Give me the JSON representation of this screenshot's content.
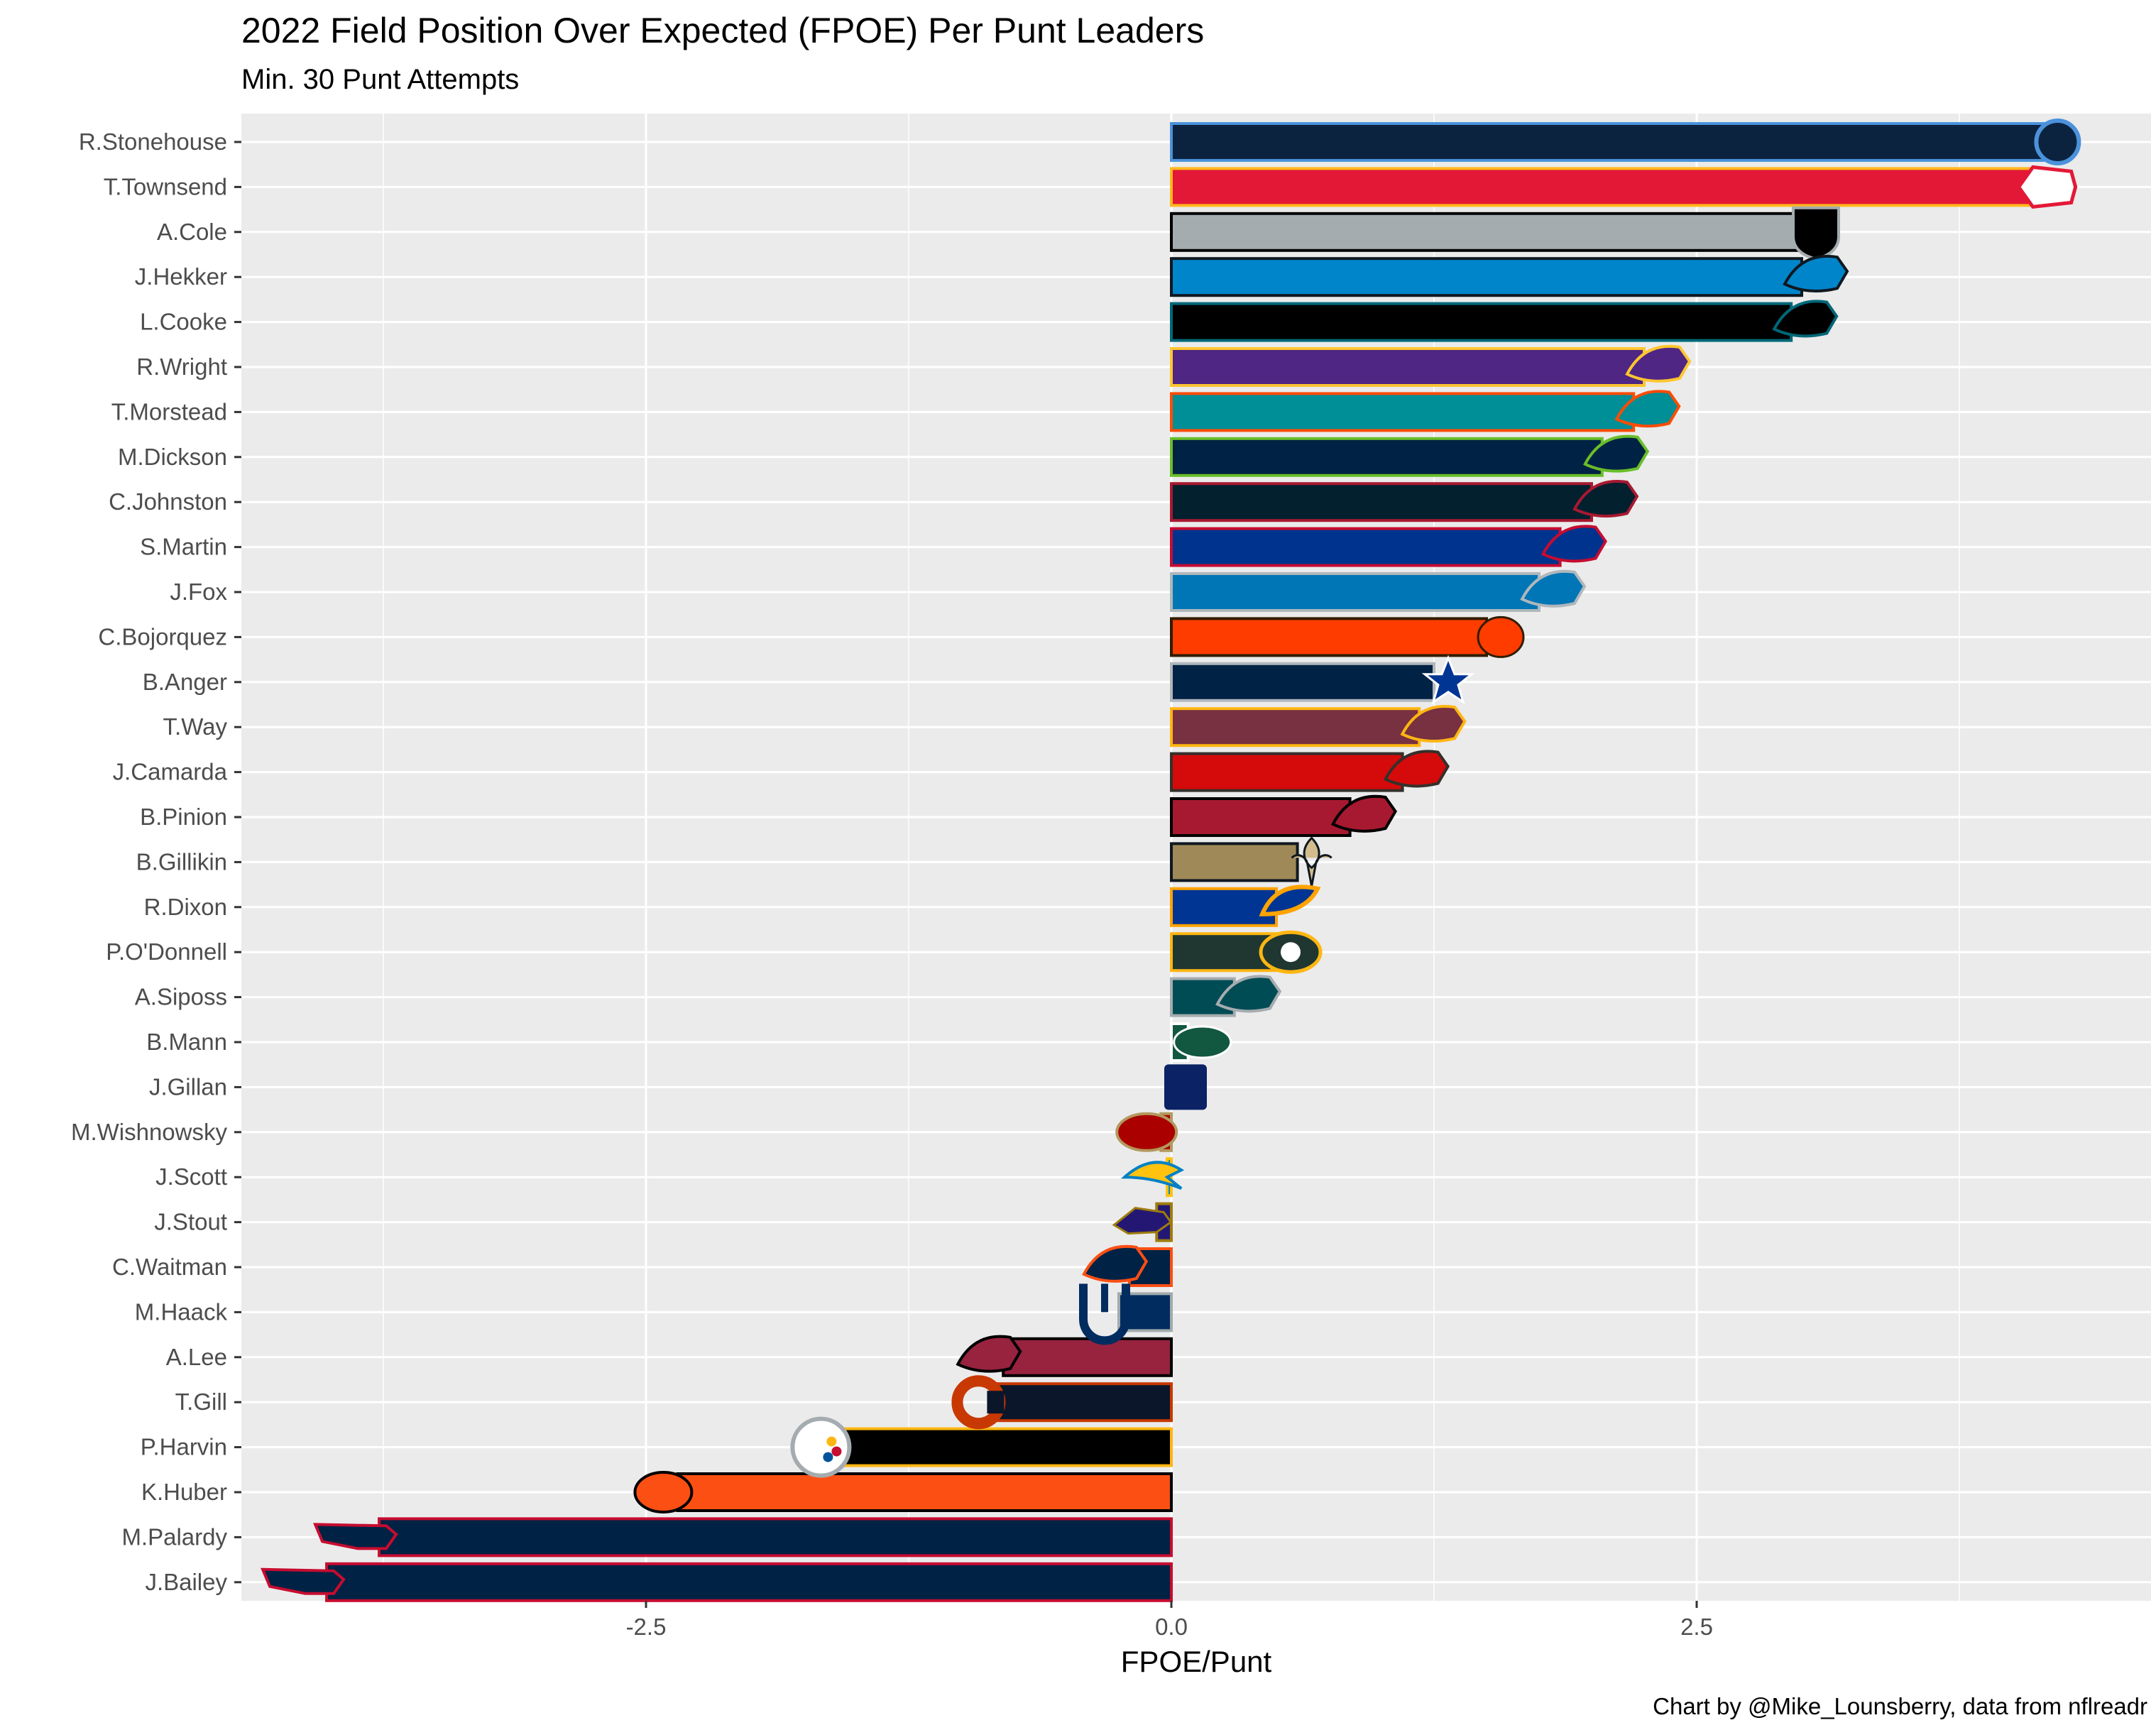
{
  "chart_data": {
    "type": "bar",
    "orientation": "horizontal",
    "title": "2022 Field Position Over Expected (FPOE) Per Punt Leaders",
    "subtitle": "Min. 30 Punt Attempts",
    "xlabel": "FPOE/Punt",
    "ylabel": "",
    "caption": "Chart by @Mike_Lounsberry, data from nflreadr",
    "xlim": [
      -4.4,
      4.65
    ],
    "x_ticks": [
      -2.5,
      0.0,
      2.5
    ],
    "x_tick_labels": [
      "-2.5",
      "0.0",
      "2.5"
    ],
    "grid": true,
    "categories": [
      "R.Stonehouse",
      "T.Townsend",
      "A.Cole",
      "J.Hekker",
      "L.Cooke",
      "R.Wright",
      "T.Morstead",
      "M.Dickson",
      "C.Johnston",
      "S.Martin",
      "J.Fox",
      "C.Bojorquez",
      "B.Anger",
      "T.Way",
      "J.Camarda",
      "B.Pinion",
      "B.Gillikin",
      "R.Dixon",
      "P.O'Donnell",
      "A.Siposs",
      "B.Mann",
      "J.Gillan",
      "M.Wishnowsky",
      "J.Scott",
      "J.Stout",
      "C.Waitman",
      "M.Haack",
      "A.Lee",
      "T.Gill",
      "P.Harvin",
      "K.Huber",
      "M.Palardy",
      "J.Bailey"
    ],
    "values": [
      4.15,
      4.1,
      3.0,
      3.0,
      2.95,
      2.25,
      2.2,
      2.05,
      2.0,
      1.85,
      1.75,
      1.5,
      1.25,
      1.18,
      1.1,
      0.85,
      0.6,
      0.5,
      0.5,
      0.3,
      0.08,
      0.0,
      -0.05,
      -0.02,
      -0.07,
      -0.2,
      -0.25,
      -0.8,
      -0.85,
      -1.6,
      -2.35,
      -3.77,
      -4.02
    ],
    "teams": [
      "TEN",
      "KC",
      "LV",
      "CAR",
      "JAX",
      "MIN",
      "MIA",
      "SEA",
      "HOU",
      "BUF",
      "DET",
      "CLE",
      "DAL",
      "WAS",
      "TB",
      "ATL",
      "NO",
      "LA",
      "GB",
      "PHI",
      "NYJ",
      "NYG",
      "SF",
      "LAC",
      "BAL",
      "DEN",
      "IND",
      "ARI",
      "CHI",
      "PIT",
      "CIN",
      "NE",
      "NE"
    ],
    "fill_colors": [
      "#0C2340",
      "#E31837",
      "#A5ACAF",
      "#0085CA",
      "#000000",
      "#4F2683",
      "#008E97",
      "#002244",
      "#03202F",
      "#00338D",
      "#0076B6",
      "#FF3C00",
      "#002244",
      "#773141",
      "#D50A0A",
      "#A71930",
      "#9F8958",
      "#003594",
      "#203731",
      "#004C54",
      "#125740",
      "#0B2265",
      "#AA0000",
      "#0080C6",
      "#241773",
      "#002244",
      "#002C5F",
      "#97233F",
      "#0B162A",
      "#000000",
      "#FB4F14",
      "#002244",
      "#002244"
    ],
    "outline_colors": [
      "#4B92DB",
      "#FFB81C",
      "#000000",
      "#101820",
      "#006778",
      "#FFC62F",
      "#FC4C02",
      "#69BE28",
      "#A71930",
      "#C60C30",
      "#B0B7BC",
      "#311D00",
      "#B0B7BC",
      "#FFB612",
      "#34302B",
      "#000000",
      "#101820",
      "#FFA300",
      "#FFB612",
      "#A5ACAF",
      "#FFFFFF",
      "#A71930",
      "#B3995D",
      "#FFC20E",
      "#9E7C0C",
      "#FB4F14",
      "#A2AAAD",
      "#000000",
      "#C83803",
      "#FFB612",
      "#000000",
      "#C60C30",
      "#C60C30"
    ]
  }
}
